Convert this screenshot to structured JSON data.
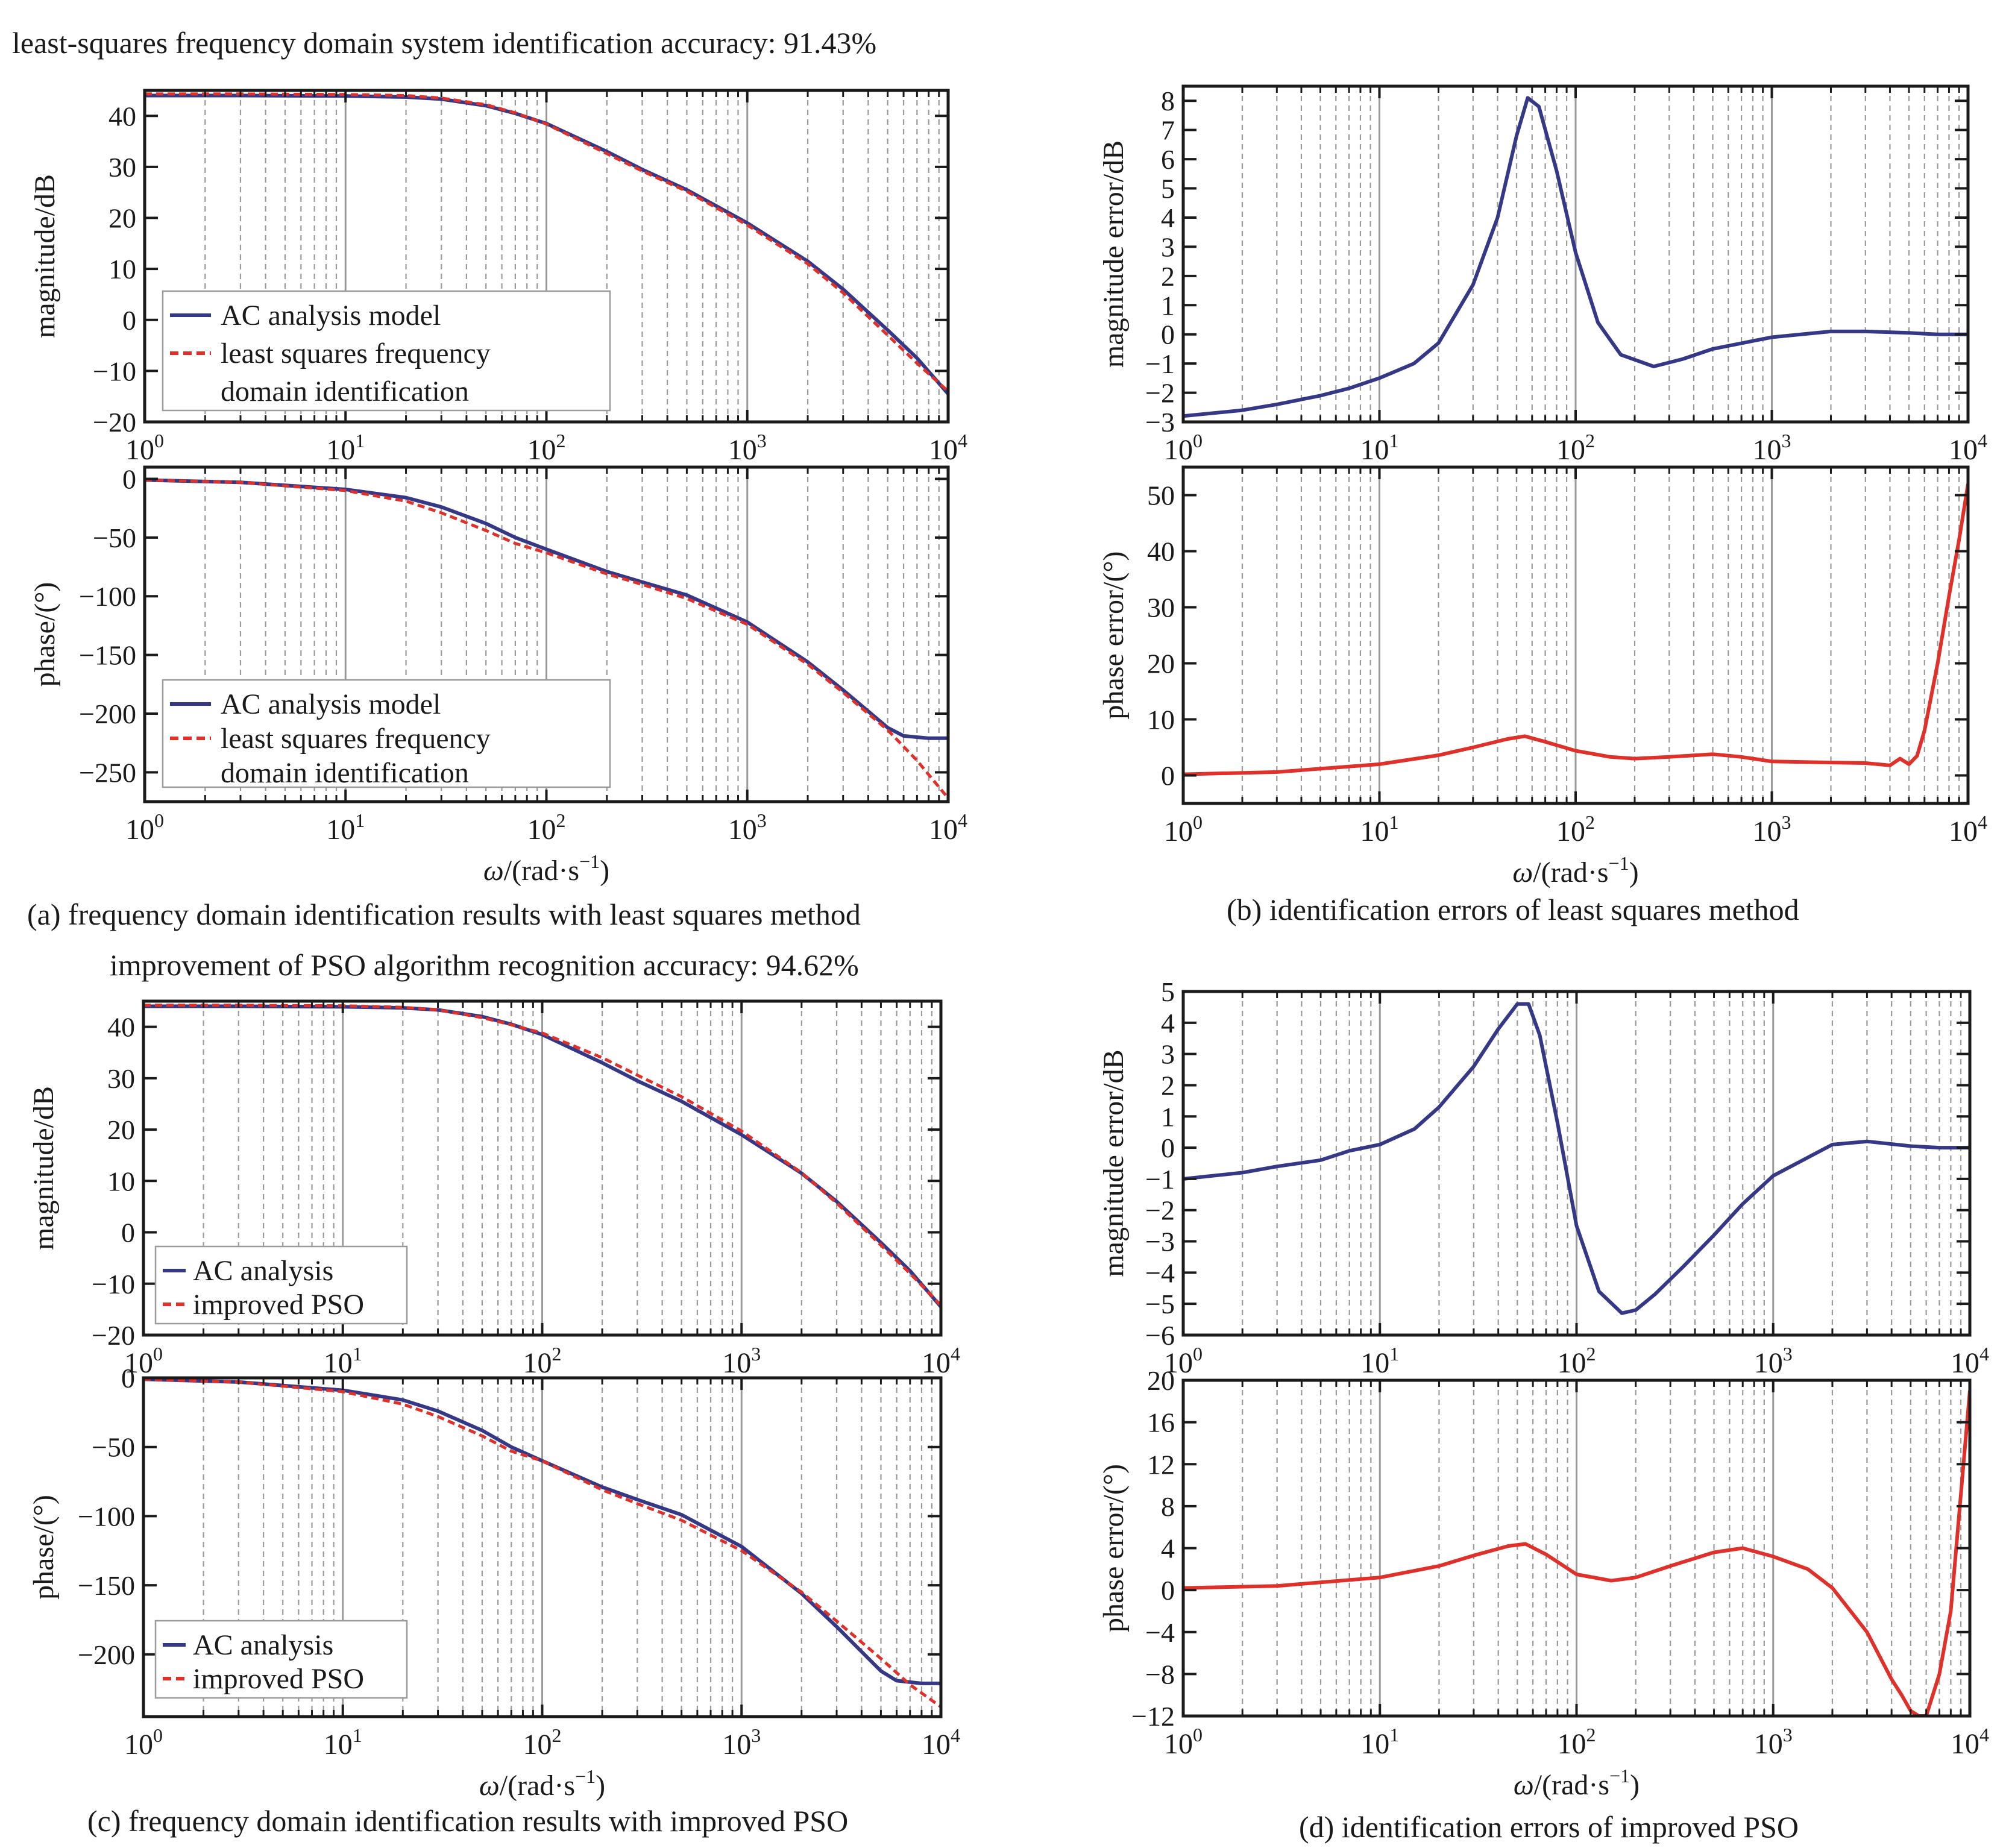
{
  "figure_text": {
    "header_a": "least-squares frequency domain system identification accuracy: 91.43%",
    "header_c": "improvement of PSO algorithm recognition accuracy: 94.62%",
    "caption_a": "(a) frequency domain identification results with least squares  method",
    "caption_b": "(b) identification errors of least squares  method",
    "caption_c": "(c) frequency domain identification results with improved PSO",
    "caption_d": "(d) identification errors of improved PSO",
    "xlabel_omega": "ω",
    "xlabel_unit": "/(rad·s",
    "xlabel_exp": "−1",
    "xlabel_close": ")"
  },
  "colors": {
    "blue": "#353886",
    "red": "#e0302a",
    "grid_major": "#9a9a9a",
    "grid_minor": "#9a9a9a",
    "axis": "#1a1a1a"
  },
  "chart_data": [
    {
      "id": "a_mag",
      "panel": "a",
      "type": "line",
      "ylabel": "magnitude/dB",
      "xscale": "log",
      "xlim": [
        1,
        10000
      ],
      "ylim": [
        -20,
        45
      ],
      "yticks": [
        40,
        30,
        20,
        10,
        0,
        -10,
        -20
      ],
      "legend": {
        "position": "bottom-left",
        "entries": [
          "AC analysis model",
          "least squares frequency",
          "domain identification"
        ]
      },
      "series": [
        {
          "name": "AC analysis model",
          "color": "blue",
          "style": "solid",
          "x": [
            1,
            3,
            10,
            20,
            30,
            50,
            70,
            100,
            200,
            300,
            500,
            1000,
            2000,
            3000,
            5000,
            7000,
            10000
          ],
          "y": [
            44,
            44,
            43.9,
            43.7,
            43.3,
            42,
            40.5,
            38.5,
            33,
            29.5,
            25.5,
            19,
            11.5,
            6,
            -2,
            -7.5,
            -14.5
          ]
        },
        {
          "name": "least squares frequency domain identification",
          "color": "red",
          "style": "dashed",
          "x": [
            1,
            3,
            10,
            20,
            30,
            50,
            70,
            100,
            200,
            300,
            500,
            1000,
            2000,
            3000,
            5000,
            7000,
            10000
          ],
          "y": [
            44.3,
            44.3,
            44.2,
            44,
            43.5,
            42.2,
            40.6,
            38.4,
            32.6,
            29.2,
            25.2,
            18.6,
            11,
            5.3,
            -3,
            -8.5,
            -14
          ]
        }
      ]
    },
    {
      "id": "a_phase",
      "panel": "a",
      "type": "line",
      "ylabel": "phase/(°)",
      "xscale": "log",
      "xlim": [
        1,
        10000
      ],
      "ylim": [
        -275,
        10
      ],
      "yticks": [
        0,
        -50,
        -100,
        -150,
        -200,
        -250
      ],
      "legend": {
        "position": "bottom-left",
        "entries": [
          "AC analysis model",
          "least squares frequency",
          "domain identification"
        ]
      },
      "series": [
        {
          "name": "AC analysis model",
          "color": "blue",
          "style": "solid",
          "x": [
            1,
            3,
            10,
            20,
            30,
            50,
            70,
            100,
            200,
            300,
            500,
            1000,
            2000,
            3000,
            4000,
            5000,
            6000,
            8000,
            10000
          ],
          "y": [
            -1,
            -3,
            -9,
            -16,
            -24,
            -38,
            -50,
            -60,
            -79,
            -88,
            -99,
            -122,
            -156,
            -180,
            -198,
            -212,
            -219,
            -221,
            -221
          ]
        },
        {
          "name": "least squares frequency domain identification",
          "color": "red",
          "style": "dashed",
          "x": [
            1,
            3,
            10,
            20,
            30,
            50,
            70,
            100,
            200,
            300,
            500,
            1000,
            2000,
            3000,
            5000,
            7000,
            10000
          ],
          "y": [
            -1,
            -3,
            -10,
            -19,
            -29,
            -44,
            -55,
            -63,
            -81,
            -90,
            -102,
            -124,
            -158,
            -182,
            -214,
            -240,
            -272
          ]
        }
      ]
    },
    {
      "id": "b_mag_err",
      "panel": "b",
      "type": "line",
      "ylabel": "magnitude error/dB",
      "xscale": "log",
      "xlim": [
        1,
        10000
      ],
      "ylim": [
        -3,
        8.5
      ],
      "yticks": [
        8,
        7,
        6,
        5,
        4,
        3,
        2,
        1,
        0,
        -1,
        -2,
        -3
      ],
      "series": [
        {
          "name": "",
          "color": "blue",
          "style": "solid",
          "x": [
            1,
            2,
            3,
            5,
            7,
            10,
            15,
            20,
            30,
            40,
            50,
            57,
            65,
            80,
            100,
            130,
            170,
            250,
            350,
            500,
            1000,
            2000,
            3000,
            5000,
            7000,
            10000
          ],
          "y": [
            -2.8,
            -2.6,
            -2.4,
            -2.1,
            -1.85,
            -1.5,
            -1.0,
            -0.3,
            1.7,
            4.0,
            6.8,
            8.1,
            7.8,
            5.6,
            2.8,
            0.4,
            -0.7,
            -1.1,
            -0.85,
            -0.5,
            -0.1,
            0.1,
            0.1,
            0.05,
            0,
            0
          ]
        }
      ]
    },
    {
      "id": "b_phase_err",
      "panel": "b",
      "type": "line",
      "ylabel": "phase error/(°)",
      "xscale": "log",
      "xlim": [
        1,
        10000
      ],
      "ylim": [
        -5,
        55
      ],
      "yticks": [
        50,
        40,
        30,
        20,
        10,
        0
      ],
      "series": [
        {
          "name": "",
          "color": "red",
          "style": "solid",
          "x": [
            1,
            3,
            10,
            20,
            30,
            45,
            55,
            70,
            100,
            150,
            200,
            300,
            500,
            700,
            1000,
            2000,
            3000,
            4000,
            4500,
            5000,
            5500,
            6000,
            7000,
            8000,
            9000,
            10000
          ],
          "y": [
            0.2,
            0.6,
            2,
            3.6,
            5,
            6.5,
            7,
            6,
            4.4,
            3.3,
            3,
            3.3,
            3.8,
            3.3,
            2.5,
            2.3,
            2.2,
            1.8,
            3,
            2,
            3.5,
            8,
            20,
            32,
            42,
            52
          ]
        }
      ]
    },
    {
      "id": "c_mag",
      "panel": "c",
      "type": "line",
      "ylabel": "magnitude/dB",
      "xscale": "log",
      "xlim": [
        1,
        10000
      ],
      "ylim": [
        -20,
        45
      ],
      "yticks": [
        40,
        30,
        20,
        10,
        0,
        -10,
        -20
      ],
      "legend": {
        "position": "bottom-left",
        "entries": [
          "AC analysis",
          "improved PSO"
        ]
      },
      "series": [
        {
          "name": "AC analysis",
          "color": "blue",
          "style": "solid",
          "x": [
            1,
            3,
            10,
            20,
            30,
            50,
            70,
            100,
            200,
            300,
            500,
            1000,
            2000,
            3000,
            5000,
            7000,
            10000
          ],
          "y": [
            44,
            44,
            43.9,
            43.7,
            43.3,
            42,
            40.5,
            38.5,
            33,
            29.5,
            25.5,
            19,
            11.5,
            6,
            -2,
            -7.5,
            -14.5
          ]
        },
        {
          "name": "improved PSO",
          "color": "red",
          "style": "dashed",
          "x": [
            1,
            3,
            10,
            20,
            30,
            50,
            70,
            100,
            200,
            300,
            500,
            1000,
            2000,
            3000,
            5000,
            7000,
            10000
          ],
          "y": [
            44.2,
            44.2,
            44.1,
            43.8,
            43.3,
            41.8,
            40.4,
            38.8,
            34,
            30.6,
            26.4,
            19.7,
            11.6,
            5.7,
            -2.5,
            -8,
            -14.2
          ]
        }
      ]
    },
    {
      "id": "c_phase",
      "panel": "c",
      "type": "line",
      "ylabel": "phase/(°)",
      "xscale": "log",
      "xlim": [
        1,
        10000
      ],
      "ylim": [
        -245,
        0
      ],
      "yticks": [
        0,
        -50,
        -100,
        -150,
        -200
      ],
      "legend": {
        "position": "bottom-left",
        "entries": [
          "AC analysis",
          "improved PSO"
        ]
      },
      "series": [
        {
          "name": "AC analysis",
          "color": "blue",
          "style": "solid",
          "x": [
            1,
            3,
            10,
            20,
            30,
            50,
            70,
            100,
            200,
            300,
            500,
            1000,
            2000,
            3000,
            4000,
            5000,
            6000,
            8000,
            10000
          ],
          "y": [
            -1,
            -3,
            -9,
            -16,
            -24,
            -38,
            -50,
            -60,
            -79,
            -88,
            -99,
            -122,
            -156,
            -180,
            -198,
            -212,
            -219,
            -221,
            -221
          ]
        },
        {
          "name": "improved PSO",
          "color": "red",
          "style": "dashed",
          "x": [
            1,
            3,
            10,
            20,
            30,
            50,
            70,
            100,
            200,
            300,
            500,
            1000,
            2000,
            3000,
            5000,
            7000,
            10000
          ],
          "y": [
            -1,
            -3,
            -10,
            -19,
            -28,
            -42,
            -53,
            -60,
            -81,
            -91,
            -103,
            -125,
            -155,
            -176,
            -203,
            -222,
            -238
          ]
        }
      ]
    },
    {
      "id": "d_mag_err",
      "panel": "d",
      "type": "line",
      "ylabel": "magnitude error/dB",
      "xscale": "log",
      "xlim": [
        1,
        10000
      ],
      "ylim": [
        -6,
        5
      ],
      "yticks": [
        5,
        4,
        3,
        2,
        1,
        0,
        -1,
        -2,
        -3,
        -4,
        -5,
        -6
      ],
      "series": [
        {
          "name": "",
          "color": "blue",
          "style": "solid",
          "x": [
            1,
            2,
            3,
            5,
            7,
            10,
            15,
            20,
            30,
            40,
            50,
            57,
            65,
            80,
            100,
            130,
            170,
            200,
            250,
            350,
            500,
            700,
            1000,
            2000,
            3000,
            5000,
            7000,
            10000
          ],
          "y": [
            -1.0,
            -0.8,
            -0.6,
            -0.4,
            -0.1,
            0.1,
            0.6,
            1.3,
            2.6,
            3.8,
            4.6,
            4.6,
            3.6,
            0.8,
            -2.5,
            -4.6,
            -5.3,
            -5.2,
            -4.7,
            -3.8,
            -2.8,
            -1.8,
            -0.9,
            0.1,
            0.2,
            0.05,
            0,
            0
          ]
        }
      ]
    },
    {
      "id": "d_phase_err",
      "panel": "d",
      "type": "line",
      "ylabel": "phase error/(°)",
      "xscale": "log",
      "xlim": [
        1,
        10000
      ],
      "ylim": [
        -12,
        20
      ],
      "yticks": [
        20,
        16,
        12,
        8,
        4,
        0,
        -4,
        -8,
        -12
      ],
      "series": [
        {
          "name": "",
          "color": "red",
          "style": "solid",
          "x": [
            1,
            3,
            10,
            20,
            30,
            45,
            55,
            70,
            100,
            150,
            200,
            300,
            500,
            700,
            1000,
            1500,
            2000,
            3000,
            4000,
            4500,
            5000,
            5500,
            6000,
            7000,
            8000,
            10000
          ],
          "y": [
            0.2,
            0.4,
            1.2,
            2.3,
            3.3,
            4.2,
            4.4,
            3.4,
            1.5,
            0.9,
            1.2,
            2.3,
            3.6,
            4.0,
            3.2,
            2.0,
            0.2,
            -4,
            -8.5,
            -10,
            -11.5,
            -12,
            -12,
            -8,
            -2,
            19
          ]
        }
      ]
    }
  ]
}
